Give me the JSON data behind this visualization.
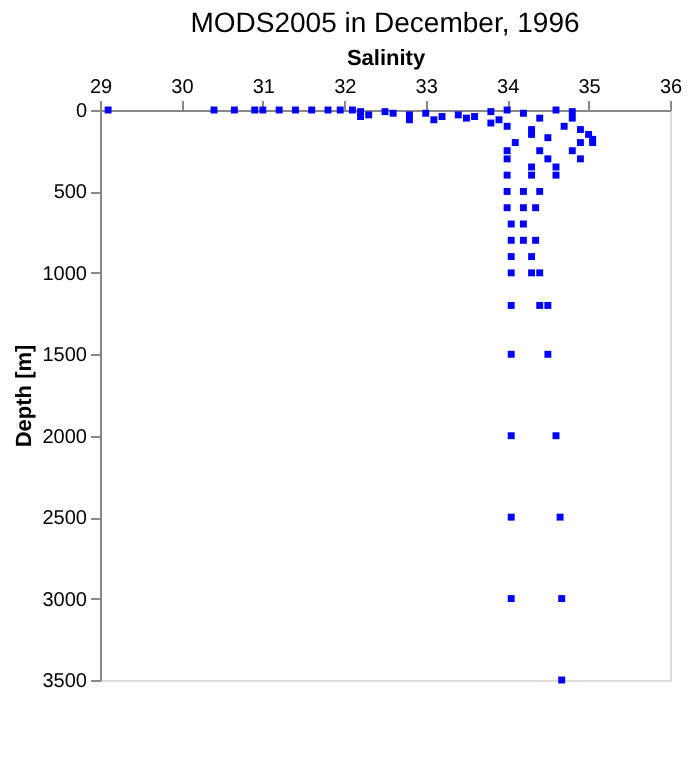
{
  "chart_data": {
    "type": "scatter",
    "title": "MODS2005 in December, 1996",
    "xlabel": "Salinity",
    "ylabel": "Depth [m]",
    "x": [
      29.1,
      30.4,
      30.65,
      30.9,
      31.0,
      31.2,
      31.4,
      31.6,
      31.8,
      31.95,
      32.1,
      32.2,
      32.3,
      32.5,
      32.6,
      32.8,
      33.0,
      33.2,
      33.4,
      33.6,
      33.8,
      33.9,
      34.0,
      34.2,
      34.4,
      34.6,
      34.8,
      34.8,
      32.2,
      32.8,
      33.1,
      33.5,
      33.8,
      34.0,
      34.3,
      34.7,
      34.9,
      35.0,
      35.05,
      35.05,
      34.9,
      34.5,
      34.3,
      34.1,
      34.0,
      34.4,
      34.8,
      34.0,
      34.5,
      34.9,
      34.3,
      34.6,
      34.3,
      34.6,
      34.0,
      34.0,
      34.2,
      34.4,
      34.0,
      34.2,
      34.35,
      34.05,
      34.2,
      34.05,
      34.2,
      34.35,
      34.05,
      34.3,
      34.05,
      34.3,
      34.4,
      34.05,
      34.4,
      34.5,
      34.05,
      34.5,
      34.05,
      34.6,
      34.05,
      34.65,
      34.05,
      34.67,
      34.67
    ],
    "series": [
      {
        "color": "#0000ff",
        "values": [
          0,
          0,
          0,
          0,
          0,
          0,
          0,
          0,
          0,
          0,
          0,
          10,
          30,
          10,
          20,
          30,
          20,
          40,
          30,
          40,
          10,
          60,
          0,
          20,
          50,
          0,
          10,
          50,
          40,
          60,
          60,
          50,
          80,
          100,
          120,
          100,
          120,
          150,
          180,
          200,
          200,
          170,
          150,
          200,
          250,
          250,
          250,
          300,
          300,
          300,
          350,
          350,
          400,
          400,
          400,
          500,
          500,
          500,
          600,
          600,
          600,
          700,
          700,
          800,
          800,
          800,
          900,
          900,
          1000,
          1000,
          1000,
          1200,
          1200,
          1200,
          1500,
          1500,
          2000,
          2000,
          2500,
          2500,
          3000,
          3000,
          3500
        ]
      }
    ],
    "xlim": [
      29,
      36
    ],
    "xticks": [
      29,
      30,
      31,
      32,
      33,
      34,
      35,
      36
    ],
    "ylim": [
      3500,
      0
    ],
    "yticks": [
      0,
      500,
      1000,
      1500,
      2000,
      2500,
      3000,
      3500
    ],
    "marker": "square",
    "grid": false
  }
}
